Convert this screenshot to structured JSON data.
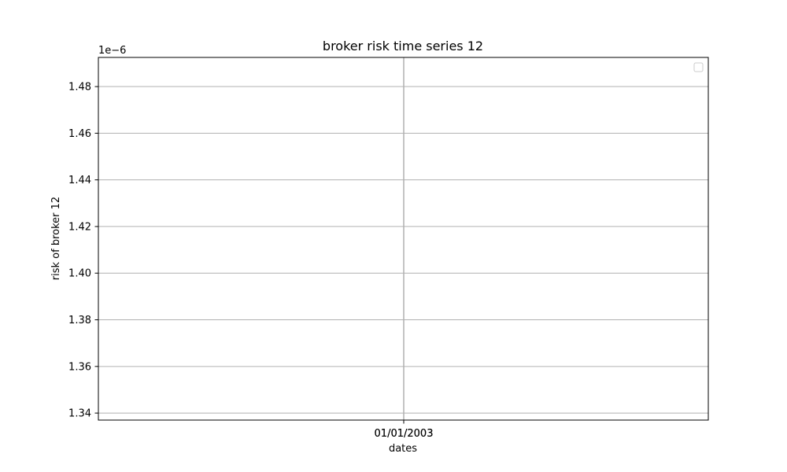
{
  "chart_data": {
    "type": "line",
    "title": "broker risk time series 12",
    "xlabel": "dates",
    "ylabel": "risk of broker 12",
    "y_offset_label": "1e−6",
    "x_tick_labels": [
      "01/01/2003",
      "01/01/2003"
    ],
    "y_ticks": [
      1.34,
      1.36,
      1.38,
      1.4,
      1.42,
      1.44,
      1.46,
      1.48
    ],
    "y_tick_labels": [
      "1.34",
      "1.36",
      "1.38",
      "1.40",
      "1.42",
      "1.44",
      "1.46",
      "1.48"
    ],
    "ylim": [
      1.337,
      1.4925
    ],
    "series": [],
    "grid": true,
    "legend_position": "upper-right",
    "legend_entries": [],
    "grid_color": "#b0b0b0",
    "axis_color": "#000000"
  }
}
